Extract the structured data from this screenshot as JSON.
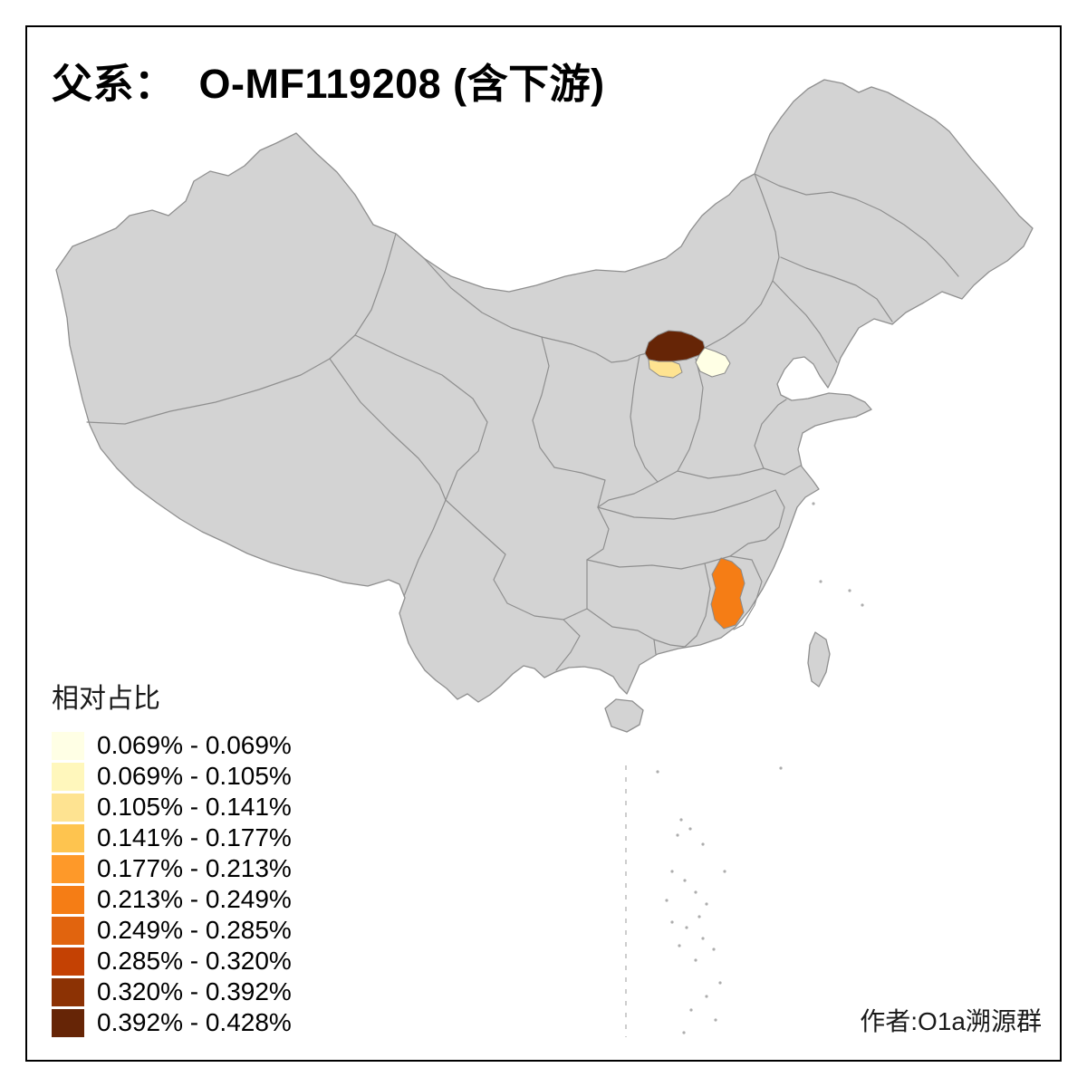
{
  "page": {
    "background_color": "#FFFFFF",
    "frame_border_color": "#000000"
  },
  "title": {
    "text": "父系：  O-MF119208 (含下游)"
  },
  "legend": {
    "title": "相对占比",
    "classes": [
      {
        "label": "0.069% - 0.069%",
        "color": "#FFFFE5"
      },
      {
        "label": "0.069% - 0.105%",
        "color": "#FFF7BC"
      },
      {
        "label": "0.105% - 0.141%",
        "color": "#FEE391"
      },
      {
        "label": "0.141% - 0.177%",
        "color": "#FEC44F"
      },
      {
        "label": "0.177% - 0.213%",
        "color": "#FE9929"
      },
      {
        "label": "0.213% - 0.249%",
        "color": "#F57D15"
      },
      {
        "label": "0.249% - 0.285%",
        "color": "#E1640E"
      },
      {
        "label": "0.285% - 0.320%",
        "color": "#C44103"
      },
      {
        "label": "0.320% - 0.392%",
        "color": "#8C3204"
      },
      {
        "label": "0.392% - 0.428%",
        "color": "#662506"
      }
    ]
  },
  "map": {
    "base_fill": "#D3D3D3",
    "border_color": "#8F8F8F",
    "regions": [
      {
        "name": "central-inner-mongolia",
        "value_range": "0.392% - 0.428%",
        "color": "#662506"
      },
      {
        "name": "northern-shanxi",
        "value_range": "0.105% - 0.141%",
        "color": "#FEE391"
      },
      {
        "name": "beijing-hebei-area",
        "value_range": "0.069% - 0.069%",
        "color": "#FFFFE5"
      },
      {
        "name": "southern-jiangxi",
        "value_range": "0.213% - 0.249%",
        "color": "#F57D15"
      }
    ]
  },
  "credit": {
    "text": "作者:O1a溯源群"
  }
}
